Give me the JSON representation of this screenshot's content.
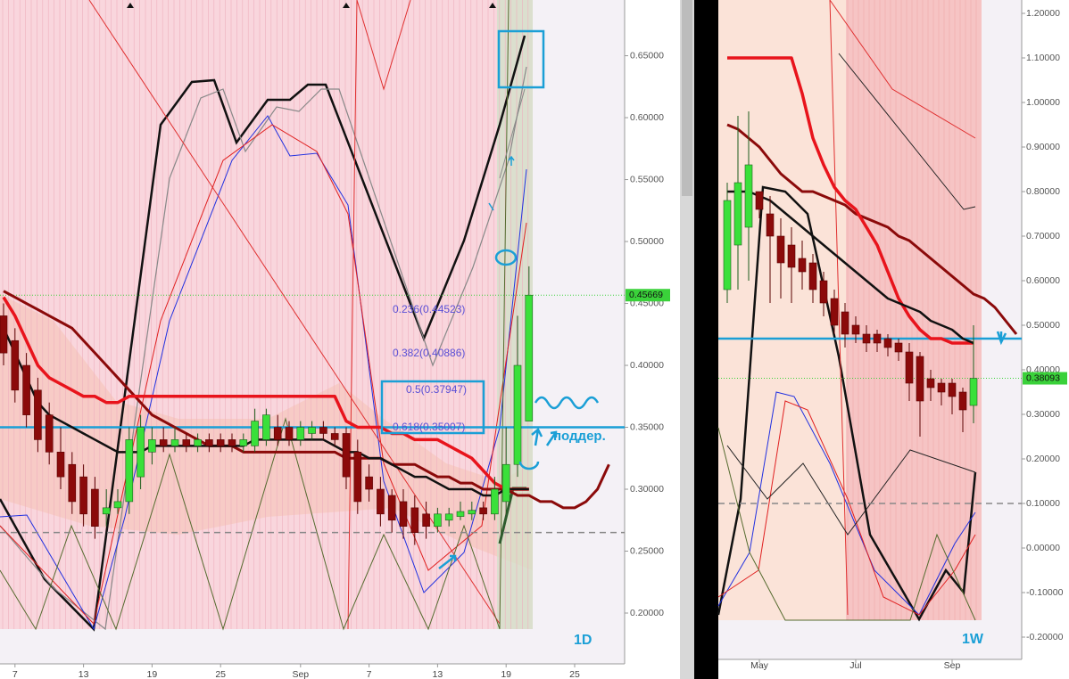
{
  "chart_data": [
    {
      "type": "candlestick",
      "categories": [
        null,
        "7",
        null,
        null,
        null,
        null,
        null,
        "13",
        null,
        null,
        null,
        null,
        null,
        "19",
        null,
        null,
        null,
        null,
        null,
        "25",
        null,
        null,
        null,
        null,
        null,
        null,
        "Sep",
        null,
        null,
        null,
        null,
        null,
        "7",
        null,
        null,
        null,
        null,
        null,
        "13",
        null,
        null,
        null,
        null,
        null,
        "19",
        null,
        null,
        null,
        null,
        null,
        "25",
        null,
        null,
        null
      ],
      "open": [
        0.44,
        0.42,
        0.4,
        0.38,
        0.36,
        0.33,
        0.32,
        0.31,
        0.3,
        0.28,
        0.285,
        0.29,
        0.31,
        0.33,
        0.34,
        0.335,
        0.34,
        0.335,
        0.34,
        0.34,
        0.34,
        0.335,
        0.335,
        0.34,
        0.35,
        0.35,
        0.34,
        0.345,
        0.35,
        0.345,
        0.345,
        0.33,
        0.31,
        0.3,
        0.295,
        0.29,
        0.285,
        0.28,
        0.27,
        0.275,
        0.278,
        0.28,
        0.285,
        0.28,
        0.29,
        0.32,
        0.355,
        null,
        null,
        null,
        null,
        null,
        null,
        null
      ],
      "high": [
        0.45,
        0.43,
        0.41,
        0.39,
        0.37,
        0.35,
        0.33,
        0.32,
        0.31,
        0.3,
        0.3,
        0.35,
        0.36,
        0.35,
        0.35,
        0.35,
        0.345,
        0.345,
        0.345,
        0.345,
        0.345,
        0.345,
        0.365,
        0.365,
        0.36,
        0.355,
        0.355,
        0.355,
        0.355,
        0.35,
        0.35,
        0.34,
        0.32,
        0.31,
        0.3,
        0.3,
        0.295,
        0.29,
        0.285,
        0.285,
        0.29,
        0.29,
        0.29,
        0.31,
        0.35,
        0.44,
        0.48,
        null,
        null,
        null,
        null,
        null,
        null,
        null
      ],
      "low": [
        0.4,
        0.37,
        0.35,
        0.33,
        0.32,
        0.3,
        0.28,
        0.27,
        0.26,
        0.27,
        0.28,
        0.28,
        0.3,
        0.32,
        0.33,
        0.33,
        0.33,
        0.33,
        0.33,
        0.33,
        0.33,
        0.33,
        0.33,
        0.335,
        0.335,
        0.335,
        0.335,
        0.34,
        0.34,
        0.335,
        0.3,
        0.28,
        0.29,
        0.27,
        0.265,
        0.26,
        0.255,
        0.26,
        0.265,
        0.27,
        0.275,
        0.275,
        0.275,
        0.275,
        0.28,
        0.31,
        0.355,
        null,
        null,
        null,
        null,
        null,
        null,
        null
      ],
      "close": [
        0.41,
        0.38,
        0.36,
        0.34,
        0.33,
        0.31,
        0.29,
        0.28,
        0.27,
        0.285,
        0.29,
        0.34,
        0.35,
        0.34,
        0.335,
        0.34,
        0.335,
        0.34,
        0.335,
        0.335,
        0.335,
        0.34,
        0.355,
        0.36,
        0.34,
        0.34,
        0.35,
        0.35,
        0.345,
        0.34,
        0.31,
        0.29,
        0.3,
        0.28,
        0.275,
        0.27,
        0.265,
        0.27,
        0.28,
        0.28,
        0.282,
        0.283,
        0.28,
        0.3,
        0.32,
        0.4,
        0.45669,
        null,
        null,
        null,
        null,
        null,
        null,
        null
      ],
      "up_color": "#3ae03a",
      "down_color": "#8b0a0a",
      "series": [
        {
          "color": "#8b0a0a",
          "line_width": 3,
          "values": [
            0.46,
            0.455,
            0.45,
            0.445,
            0.44,
            0.435,
            0.43,
            0.42,
            0.41,
            0.4,
            0.39,
            0.38,
            0.37,
            0.36,
            0.355,
            0.35,
            0.345,
            0.34,
            0.335,
            0.335,
            0.335,
            0.33,
            0.33,
            0.33,
            0.33,
            0.33,
            0.33,
            0.33,
            0.33,
            0.33,
            0.325,
            0.325,
            0.325,
            0.325,
            0.32,
            0.32,
            0.32,
            0.315,
            0.31,
            0.31,
            0.305,
            0.305,
            0.3,
            0.3,
            0.3,
            0.295,
            0.295,
            0.29,
            0.29,
            0.285,
            0.285,
            0.29,
            0.3,
            0.32
          ]
        },
        {
          "color": "#e8141c",
          "line_width": 3.5,
          "values": [
            0.455,
            0.44,
            0.42,
            0.4,
            0.39,
            0.385,
            0.38,
            0.375,
            0.375,
            0.37,
            0.37,
            0.375,
            0.375,
            0.375,
            0.375,
            0.375,
            0.375,
            0.375,
            0.375,
            0.375,
            0.375,
            0.375,
            0.375,
            0.375,
            0.375,
            0.375,
            0.375,
            0.375,
            0.375,
            0.375,
            0.355,
            0.35,
            0.35,
            0.35,
            0.345,
            0.345,
            0.34,
            0.34,
            0.34,
            0.335,
            0.33,
            0.325,
            0.315,
            0.305,
            0.3,
            0.3,
            0.3,
            null,
            null,
            null,
            null,
            null,
            null,
            null
          ]
        },
        {
          "color": "#111111",
          "line_width": 2.5,
          "values": [
            0.43,
            0.41,
            0.39,
            0.37,
            0.36,
            0.355,
            0.35,
            0.345,
            0.34,
            0.335,
            0.33,
            0.33,
            0.33,
            0.335,
            0.335,
            0.335,
            0.335,
            0.335,
            0.335,
            0.335,
            0.335,
            0.335,
            0.34,
            0.34,
            0.34,
            0.34,
            0.34,
            0.34,
            0.34,
            0.335,
            0.33,
            0.33,
            0.325,
            0.325,
            0.32,
            0.315,
            0.31,
            0.31,
            0.305,
            0.3,
            0.3,
            0.3,
            0.295,
            0.295,
            0.3,
            0.3,
            0.3,
            null,
            null,
            null,
            null,
            null,
            null,
            null
          ]
        }
      ],
      "ylim": [
        0.159,
        0.695
      ],
      "yticks": [
        {
          "value": 0.2,
          "label": "0.20000"
        },
        {
          "value": 0.25,
          "label": "0.25000"
        },
        {
          "value": 0.3,
          "label": "0.30000"
        },
        {
          "value": 0.35,
          "label": "0.35000"
        },
        {
          "value": 0.4,
          "label": "0.40000"
        },
        {
          "value": 0.45,
          "label": "0.45000"
        },
        {
          "value": 0.5,
          "label": "0.50000"
        },
        {
          "value": 0.55,
          "label": "0.55000"
        },
        {
          "value": 0.6,
          "label": "0.60000"
        },
        {
          "value": 0.65,
          "label": "0.65000"
        }
      ],
      "hlines": [
        {
          "value": 0.35,
          "color": "#1a9fd6",
          "dashed": false
        },
        {
          "value": 0.265,
          "color": "#888888",
          "dashed": true
        },
        {
          "value": 0.45669,
          "color": "#3ad13a",
          "dashed": true
        }
      ],
      "price": 0.45669,
      "annotations": [
        "0.236(0.44523)",
        "0.382(0.40886)",
        "0.5(0.37947)",
        "0.618(0.35007)",
        "поддер.",
        "1D"
      ]
    },
    {
      "type": "candlestick",
      "categories": [
        null,
        null,
        null,
        "May",
        null,
        null,
        null,
        null,
        null,
        null,
        null,
        null,
        "Jul",
        null,
        null,
        null,
        null,
        null,
        null,
        null,
        null,
        "Sep",
        null,
        null,
        null,
        null,
        null,
        null
      ],
      "open": [
        0.58,
        0.68,
        0.72,
        0.8,
        0.75,
        0.7,
        0.68,
        0.65,
        0.64,
        0.6,
        0.56,
        0.53,
        0.5,
        0.48,
        0.48,
        0.47,
        0.46,
        0.44,
        0.43,
        0.38,
        0.37,
        0.37,
        0.35,
        0.32,
        null,
        null,
        null,
        null
      ],
      "high": [
        0.82,
        0.97,
        0.98,
        0.8,
        0.79,
        0.74,
        0.72,
        0.69,
        0.66,
        0.62,
        0.58,
        0.55,
        0.52,
        0.5,
        0.49,
        0.48,
        0.47,
        0.46,
        0.44,
        0.4,
        0.38,
        0.38,
        0.36,
        0.5,
        null,
        null,
        null,
        null
      ],
      "low": [
        0.55,
        0.58,
        0.6,
        0.74,
        0.55,
        0.56,
        0.55,
        0.58,
        0.55,
        0.52,
        0.48,
        0.45,
        0.46,
        0.44,
        0.44,
        0.43,
        0.42,
        0.33,
        0.25,
        0.33,
        0.32,
        0.3,
        0.26,
        0.28,
        null,
        null,
        null,
        null
      ],
      "close": [
        0.78,
        0.82,
        0.86,
        0.76,
        0.7,
        0.64,
        0.63,
        0.62,
        0.58,
        0.55,
        0.5,
        0.48,
        0.48,
        0.46,
        0.46,
        0.45,
        0.44,
        0.37,
        0.33,
        0.36,
        0.35,
        0.34,
        0.31,
        0.38093,
        null,
        null,
        null,
        null
      ],
      "up_color": "#3ae03a",
      "down_color": "#8b0a0a",
      "series": [
        {
          "color": "#8b0a0a",
          "line_width": 3,
          "values": [
            0.95,
            0.94,
            0.92,
            0.9,
            0.87,
            0.84,
            0.82,
            0.8,
            0.8,
            0.79,
            0.78,
            0.77,
            0.75,
            0.74,
            0.73,
            0.72,
            0.7,
            0.69,
            0.67,
            0.65,
            0.63,
            0.61,
            0.59,
            0.57,
            0.56,
            0.54,
            0.51,
            0.48
          ]
        },
        {
          "color": "#e8141c",
          "line_width": 3.5,
          "values": [
            1.1,
            1.1,
            1.1,
            1.1,
            1.1,
            1.1,
            1.1,
            1.02,
            0.92,
            0.86,
            0.81,
            0.78,
            0.76,
            0.72,
            0.68,
            0.62,
            0.56,
            0.52,
            0.49,
            0.47,
            0.47,
            0.46,
            0.46,
            0.46,
            null,
            null,
            null,
            null
          ]
        },
        {
          "color": "#111111",
          "line_width": 2.5,
          "values": [
            0.8,
            0.8,
            0.8,
            0.79,
            0.78,
            0.76,
            0.74,
            0.72,
            0.7,
            0.68,
            0.66,
            0.64,
            0.62,
            0.6,
            0.58,
            0.56,
            0.55,
            0.54,
            0.53,
            0.51,
            0.5,
            0.49,
            0.47,
            0.46,
            null,
            null,
            null,
            null
          ]
        }
      ],
      "ylim": [
        -0.25,
        1.23
      ],
      "yticks": [
        {
          "value": -0.2,
          "label": "-0.20000"
        },
        {
          "value": -0.1,
          "label": "-0.10000"
        },
        {
          "value": 0,
          "label": "0.00000"
        },
        {
          "value": 0.1,
          "label": "0.10000"
        },
        {
          "value": 0.2,
          "label": "0.20000"
        },
        {
          "value": 0.3,
          "label": "0.30000"
        },
        {
          "value": 0.4,
          "label": "0.40000"
        },
        {
          "value": 0.5,
          "label": "0.50000"
        },
        {
          "value": 0.6,
          "label": "0.60000"
        },
        {
          "value": 0.7,
          "label": "0.70000"
        },
        {
          "value": 0.8,
          "label": "0.80000"
        },
        {
          "value": 0.9,
          "label": "0.90000"
        },
        {
          "value": 1.0,
          "label": "1.00000"
        },
        {
          "value": 1.1,
          "label": "1.10000"
        },
        {
          "value": 1.2,
          "label": "1.20000"
        }
      ],
      "hlines": [
        {
          "value": 0.47,
          "color": "#1a9fd6",
          "dashed": false
        },
        {
          "value": 0.1,
          "color": "#888888",
          "dashed": true
        },
        {
          "value": 0.38093,
          "color": "#3ad13a",
          "dashed": true
        }
      ],
      "price": 0.38093,
      "annotations": [
        "1W"
      ]
    }
  ]
}
